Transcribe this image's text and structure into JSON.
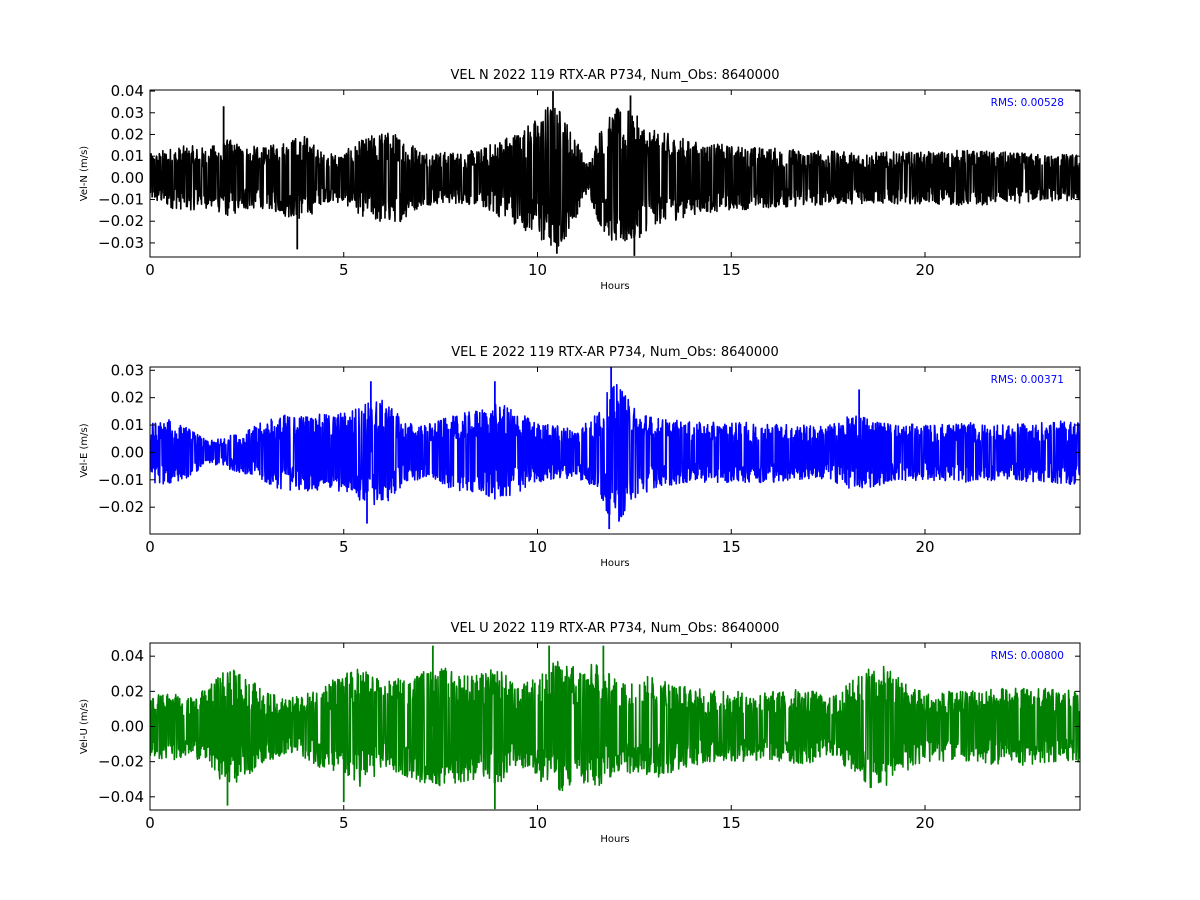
{
  "figure": {
    "background": "#ffffff"
  },
  "chart_data": [
    {
      "type": "line",
      "title": "VEL N 2022 119 RTX-AR  P734, Num_Obs: 8640000",
      "xlabel": "Hours",
      "ylabel": "Vel-N (m/s)",
      "xlim": [
        0,
        24
      ],
      "ylim": [
        -0.0365,
        0.0405
      ],
      "xticks": [
        0,
        5,
        10,
        15,
        20
      ],
      "yticks": [
        -0.03,
        -0.02,
        -0.01,
        0.0,
        0.01,
        0.02,
        0.03,
        0.04
      ],
      "ytick_labels": [
        "−0.03",
        "−0.02",
        "−0.01",
        "0.00",
        "0.01",
        "0.02",
        "0.03",
        "0.04"
      ],
      "color": "#000000",
      "annotation": {
        "text": "RMS:  0.00528",
        "color": "#0000ff",
        "position": "top-right"
      },
      "envelope": {
        "x": [
          0,
          0.5,
          1,
          1.5,
          2,
          2.5,
          3,
          3.5,
          4,
          4.5,
          5,
          5.5,
          6,
          6.5,
          7,
          7.5,
          8,
          8.5,
          9,
          9.5,
          10,
          10.3,
          10.6,
          11,
          11.3,
          11.6,
          12,
          12.3,
          12.6,
          13,
          13.5,
          14,
          15,
          16,
          17,
          18,
          19,
          20,
          21,
          22,
          23,
          24
        ],
        "amp": [
          0.011,
          0.014,
          0.015,
          0.014,
          0.018,
          0.015,
          0.014,
          0.018,
          0.02,
          0.011,
          0.012,
          0.018,
          0.022,
          0.02,
          0.013,
          0.012,
          0.012,
          0.013,
          0.018,
          0.022,
          0.028,
          0.035,
          0.032,
          0.018,
          0.006,
          0.022,
          0.032,
          0.033,
          0.028,
          0.022,
          0.02,
          0.017,
          0.015,
          0.014,
          0.013,
          0.012,
          0.012,
          0.012,
          0.013,
          0.012,
          0.011,
          0.011
        ]
      },
      "peaks": [
        [
          1.9,
          0.033
        ],
        [
          10.4,
          0.04
        ],
        [
          10.5,
          -0.035
        ],
        [
          12.4,
          0.038
        ],
        [
          12.5,
          -0.036
        ],
        [
          3.8,
          -0.033
        ]
      ]
    },
    {
      "type": "line",
      "title": "VEL E 2022 119 RTX-AR  P734, Num_Obs: 8640000",
      "xlabel": "Hours",
      "ylabel": "Vel-E (m/s)",
      "xlim": [
        0,
        24
      ],
      "ylim": [
        -0.0298,
        0.0312
      ],
      "xticks": [
        0,
        5,
        10,
        15,
        20
      ],
      "yticks": [
        -0.02,
        -0.01,
        0.0,
        0.01,
        0.02,
        0.03
      ],
      "ytick_labels": [
        "−0.02",
        "−0.01",
        "0.00",
        "0.01",
        "0.02",
        "0.03"
      ],
      "color": "#0000ff",
      "annotation": {
        "text": "RMS:  0.00371",
        "color": "#0000ff",
        "position": "top-right"
      },
      "envelope": {
        "x": [
          0,
          0.5,
          1,
          1.5,
          2,
          2.5,
          3,
          3.5,
          4,
          4.5,
          5,
          5.5,
          5.8,
          6.2,
          6.5,
          7,
          7.5,
          8,
          8.5,
          9,
          9.5,
          10,
          10.5,
          11,
          11.5,
          11.8,
          12.1,
          12.4,
          13,
          14,
          15,
          16,
          17,
          17.5,
          18,
          18.5,
          19,
          20,
          21,
          22,
          23,
          24
        ],
        "amp": [
          0.011,
          0.012,
          0.009,
          0.004,
          0.006,
          0.008,
          0.012,
          0.014,
          0.014,
          0.014,
          0.015,
          0.018,
          0.02,
          0.018,
          0.012,
          0.01,
          0.012,
          0.014,
          0.016,
          0.018,
          0.015,
          0.011,
          0.01,
          0.009,
          0.014,
          0.022,
          0.026,
          0.018,
          0.013,
          0.011,
          0.011,
          0.011,
          0.01,
          0.01,
          0.013,
          0.014,
          0.011,
          0.01,
          0.011,
          0.01,
          0.011,
          0.012
        ]
      },
      "peaks": [
        [
          11.9,
          0.031
        ],
        [
          11.85,
          -0.028
        ],
        [
          5.7,
          0.026
        ],
        [
          5.6,
          -0.026
        ],
        [
          8.9,
          0.026
        ],
        [
          18.3,
          0.023
        ]
      ]
    },
    {
      "type": "line",
      "title": "VEL U 2022 119 RTX-AR  P734, Num_Obs: 8640000",
      "xlabel": "Hours",
      "ylabel": "Vel-U (m/s)",
      "xlim": [
        0,
        24
      ],
      "ylim": [
        -0.0475,
        0.0475
      ],
      "xticks": [
        0,
        5,
        10,
        15,
        20
      ],
      "yticks": [
        -0.04,
        -0.02,
        0.0,
        0.02,
        0.04
      ],
      "ytick_labels": [
        "−0.04",
        "−0.02",
        "0.00",
        "0.02",
        "0.04"
      ],
      "color": "#008000",
      "annotation": {
        "text": "RMS:  0.00800",
        "color": "#0000ff",
        "position": "top-right"
      },
      "envelope": {
        "x": [
          0,
          0.5,
          1,
          1.5,
          2,
          2.5,
          3,
          3.5,
          4,
          4.5,
          5,
          5.5,
          6,
          6.5,
          7,
          7.5,
          8,
          8.5,
          9,
          9.5,
          10,
          10.5,
          11,
          11.5,
          12,
          12.5,
          13,
          13.5,
          14,
          15,
          16,
          17,
          17.5,
          18,
          18.5,
          19,
          19.5,
          20,
          21,
          22,
          23,
          24
        ],
        "amp": [
          0.018,
          0.02,
          0.016,
          0.022,
          0.035,
          0.028,
          0.02,
          0.016,
          0.018,
          0.025,
          0.03,
          0.035,
          0.025,
          0.028,
          0.032,
          0.034,
          0.032,
          0.03,
          0.034,
          0.022,
          0.03,
          0.038,
          0.035,
          0.036,
          0.028,
          0.026,
          0.03,
          0.026,
          0.022,
          0.02,
          0.02,
          0.022,
          0.016,
          0.024,
          0.035,
          0.034,
          0.026,
          0.02,
          0.02,
          0.022,
          0.022,
          0.02
        ]
      },
      "peaks": [
        [
          7.3,
          0.046
        ],
        [
          10.3,
          0.046
        ],
        [
          11.7,
          0.046
        ],
        [
          8.9,
          -0.047
        ],
        [
          2.0,
          -0.045
        ],
        [
          5.0,
          -0.043
        ]
      ]
    }
  ]
}
